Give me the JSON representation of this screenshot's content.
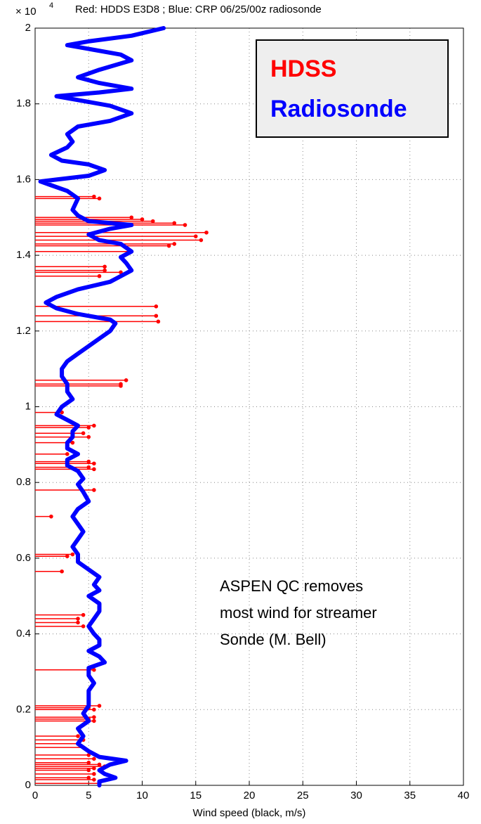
{
  "chart_data": {
    "type": "line",
    "title": "Red: HDDS E3D8 ; Blue: CRP 06/25/00z radiosonde",
    "y_multiplier": {
      "base": "× 10",
      "exponent": "4"
    },
    "xlabel": "Wind speed (black, m/s)",
    "annotation": [
      "ASPEN QC removes",
      "most wind for streamer",
      "Sonde (M. Bell)"
    ],
    "xlim": [
      0,
      40
    ],
    "xticks": [
      0,
      5,
      10,
      15,
      20,
      25,
      30,
      35,
      40
    ],
    "ylim": [
      0,
      2
    ],
    "yticks": [
      0,
      0.2,
      0.4,
      0.6,
      0.8,
      1,
      1.2,
      1.4,
      1.6,
      1.8,
      2
    ],
    "grid": true,
    "legend": "upper right",
    "series": [
      {
        "name": "HDSS",
        "color": "#ff0000",
        "style": "stem",
        "x": [
          5.5,
          6,
          9,
          10,
          11,
          13,
          14,
          16,
          15,
          15.5,
          13,
          12.5,
          9,
          6.5,
          6.5,
          8,
          6,
          11.3,
          11.3,
          11.5,
          8.5,
          8,
          8,
          2.5,
          5.5,
          5,
          4.5,
          5,
          3.5,
          3,
          5,
          5.5,
          5,
          5.5,
          5.5,
          1.5,
          3.5,
          3,
          2.5,
          4.5,
          4,
          4,
          4.5,
          5.5,
          6,
          5,
          5.5,
          5.5,
          5,
          5.5,
          4,
          4.5,
          4,
          4.5,
          5,
          5.5,
          5,
          6,
          6.5,
          5.5,
          5,
          5.5,
          5,
          5.5,
          6
        ],
        "y": [
          1.555,
          1.55,
          1.5,
          1.495,
          1.49,
          1.485,
          1.48,
          1.46,
          1.45,
          1.44,
          1.43,
          1.425,
          1.41,
          1.37,
          1.36,
          1.355,
          1.345,
          1.265,
          1.24,
          1.225,
          1.07,
          1.06,
          1.055,
          0.985,
          0.95,
          0.945,
          0.93,
          0.92,
          0.905,
          0.875,
          0.855,
          0.85,
          0.84,
          0.835,
          0.78,
          0.71,
          0.61,
          0.605,
          0.565,
          0.45,
          0.44,
          0.43,
          0.42,
          0.305,
          0.21,
          0.205,
          0.2,
          0.18,
          0.175,
          0.17,
          0.13,
          0.12,
          0.11,
          0.1,
          0.08,
          0.07,
          0.06,
          0.055,
          0.05,
          0.045,
          0.04,
          0.03,
          0.02,
          0.015,
          0.005
        ]
      },
      {
        "name": "Radiosonde",
        "color": "#0000ff",
        "style": "line",
        "x": [
          12,
          9,
          5,
          3,
          5,
          8,
          9,
          6,
          4,
          6,
          9,
          6,
          2,
          4,
          7,
          9,
          7,
          4,
          3,
          3.5,
          3,
          1.5,
          2.5,
          5,
          6.5,
          5,
          2,
          0.5,
          1.5,
          3,
          4,
          3.5,
          4,
          5,
          7,
          9,
          7,
          5,
          6,
          8,
          9,
          8,
          8.5,
          9,
          7,
          4,
          2,
          1,
          2,
          4,
          6,
          7,
          7.5,
          7,
          6,
          5,
          4,
          3,
          2.5,
          2.5,
          3,
          3,
          3.5,
          2.5,
          2,
          3,
          4,
          3.5,
          3.5,
          3,
          3,
          4,
          3,
          3,
          4,
          4.5,
          4,
          4.5,
          5,
          4,
          3.5,
          4,
          4.5,
          4,
          3.5,
          4,
          4,
          5,
          6,
          5.5,
          6,
          5,
          6,
          6,
          5.5,
          5,
          5.5,
          6,
          6,
          5,
          6,
          6.5,
          5,
          5,
          5.5,
          5,
          5,
          5,
          4.5,
          5,
          4,
          4.5,
          4,
          5,
          6,
          8.5,
          7,
          6,
          6.5,
          7.5,
          6,
          6
        ],
        "y": [
          2,
          1.98,
          1.965,
          1.955,
          1.945,
          1.93,
          1.915,
          1.89,
          1.87,
          1.855,
          1.84,
          1.83,
          1.82,
          1.81,
          1.795,
          1.775,
          1.755,
          1.74,
          1.72,
          1.7,
          1.685,
          1.665,
          1.65,
          1.64,
          1.625,
          1.61,
          1.6,
          1.595,
          1.585,
          1.57,
          1.55,
          1.52,
          1.505,
          1.49,
          1.485,
          1.48,
          1.47,
          1.455,
          1.44,
          1.43,
          1.41,
          1.395,
          1.38,
          1.36,
          1.33,
          1.31,
          1.29,
          1.275,
          1.26,
          1.245,
          1.235,
          1.23,
          1.22,
          1.2,
          1.18,
          1.16,
          1.14,
          1.12,
          1.1,
          1.08,
          1.06,
          1.04,
          1.02,
          1,
          0.98,
          0.965,
          0.95,
          0.935,
          0.92,
          0.905,
          0.89,
          0.875,
          0.86,
          0.845,
          0.83,
          0.81,
          0.795,
          0.775,
          0.75,
          0.73,
          0.71,
          0.69,
          0.67,
          0.65,
          0.63,
          0.61,
          0.59,
          0.57,
          0.55,
          0.53,
          0.515,
          0.5,
          0.48,
          0.46,
          0.44,
          0.42,
          0.4,
          0.385,
          0.37,
          0.355,
          0.34,
          0.325,
          0.31,
          0.29,
          0.27,
          0.25,
          0.23,
          0.21,
          0.19,
          0.17,
          0.15,
          0.13,
          0.11,
          0.09,
          0.075,
          0.065,
          0.055,
          0.04,
          0.03,
          0.02,
          0.01,
          0
        ]
      }
    ]
  }
}
